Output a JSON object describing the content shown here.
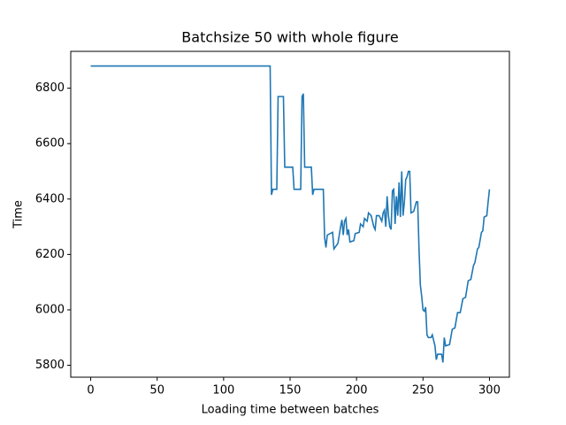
{
  "chart_data": {
    "type": "line",
    "title": "Batchsize 50 with whole figure",
    "x_label": "Loading time between batches",
    "y_label": "Time",
    "x": [
      0,
      135,
      136,
      137,
      140,
      141,
      145,
      146,
      152,
      153,
      158,
      159,
      160,
      161,
      166,
      167,
      168,
      175,
      176,
      177,
      178,
      182,
      183,
      186,
      188,
      189,
      190,
      191,
      192,
      193,
      194,
      195,
      198,
      199,
      202,
      203,
      205,
      206,
      208,
      209,
      211,
      213,
      214,
      215,
      217,
      219,
      220,
      221,
      222,
      223,
      224,
      225,
      226,
      227,
      228,
      229,
      230,
      231,
      232,
      233,
      234,
      235,
      236,
      237,
      238,
      239,
      240,
      241,
      243,
      245,
      246,
      247,
      248,
      249,
      250,
      251,
      252,
      253,
      254,
      256,
      257,
      258,
      259,
      260,
      261,
      264,
      265,
      266,
      267,
      270,
      272,
      274,
      276,
      278,
      280,
      282,
      284,
      286,
      288,
      289,
      291,
      292,
      294,
      295,
      296,
      298,
      299,
      300
    ],
    "series": [
      {
        "name": "Time",
        "color": "#1f77b4",
        "values": [
          6880,
          6880,
          6415,
          6435,
          6435,
          6770,
          6770,
          6515,
          6515,
          6435,
          6435,
          6770,
          6780,
          6515,
          6515,
          6415,
          6435,
          6435,
          6260,
          6225,
          6270,
          6280,
          6220,
          6240,
          6300,
          6325,
          6270,
          6320,
          6330,
          6270,
          6290,
          6245,
          6250,
          6275,
          6280,
          6310,
          6300,
          6330,
          6320,
          6350,
          6340,
          6300,
          6290,
          6340,
          6340,
          6320,
          6350,
          6360,
          6300,
          6410,
          6340,
          6300,
          6290,
          6430,
          6435,
          6310,
          6410,
          6340,
          6460,
          6335,
          6500,
          6340,
          6390,
          6470,
          6480,
          6500,
          6500,
          6350,
          6355,
          6390,
          6390,
          6220,
          6090,
          6050,
          6000,
          5995,
          6010,
          5910,
          5900,
          5900,
          5910,
          5890,
          5870,
          5820,
          5840,
          5840,
          5810,
          5900,
          5870,
          5875,
          5930,
          5935,
          5990,
          5990,
          6040,
          6045,
          6105,
          6110,
          6160,
          6170,
          6220,
          6225,
          6280,
          6285,
          6335,
          6340,
          6390,
          6435
        ]
      }
    ],
    "xlim": [
      -15,
      315
    ],
    "xticks": [
      0,
      50,
      100,
      150,
      200,
      250,
      300
    ],
    "ylim": [
      5757,
      6933
    ],
    "yticks": [
      5800,
      6000,
      6200,
      6400,
      6600,
      6800
    ]
  }
}
